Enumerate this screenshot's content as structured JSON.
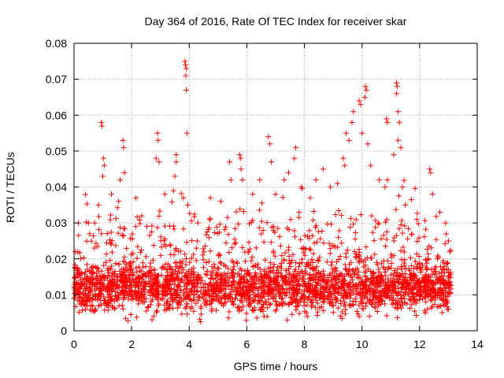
{
  "chart_data": {
    "type": "scatter",
    "title": "Day 364 of 2016, Rate Of TEC Index for receiver skar",
    "xlabel": "GPS time / hours",
    "ylabel": "ROTI / TECUs",
    "xlim": [
      0,
      14
    ],
    "ylim": [
      0,
      0.08
    ],
    "xticks": [
      0,
      2,
      4,
      6,
      8,
      10,
      12,
      14
    ],
    "xtick_labels": [
      "0",
      "2",
      "4",
      "6",
      "8",
      "10",
      "12",
      "14"
    ],
    "yticks": [
      0,
      0.01,
      0.02,
      0.03,
      0.04,
      0.05,
      0.06,
      0.07,
      0.08
    ],
    "ytick_labels": [
      "0",
      "0.01",
      "0.02",
      "0.03",
      "0.04",
      "0.05",
      "0.06",
      "0.07",
      "0.08"
    ],
    "grid": true,
    "marker": "+",
    "series": [
      {
        "name": "ROTI",
        "color": "#ff0000",
        "x_range": [
          0,
          13.1
        ],
        "count": 2800,
        "baseline_mean": 0.012,
        "points": [
          [
            0.15,
            0.03
          ],
          [
            0.5,
            0.03
          ],
          [
            0.95,
            0.058
          ],
          [
            0.97,
            0.057
          ],
          [
            1.02,
            0.048
          ],
          [
            1.05,
            0.046
          ],
          [
            1.0,
            0.043
          ],
          [
            0.85,
            0.035
          ],
          [
            1.3,
            0.038
          ],
          [
            1.55,
            0.036
          ],
          [
            1.7,
            0.053
          ],
          [
            1.72,
            0.051
          ],
          [
            1.75,
            0.044
          ],
          [
            1.6,
            0.042
          ],
          [
            2.15,
            0.037
          ],
          [
            2.35,
            0.032
          ],
          [
            2.9,
            0.055
          ],
          [
            2.92,
            0.053
          ],
          [
            2.85,
            0.048
          ],
          [
            2.95,
            0.047
          ],
          [
            3.15,
            0.038
          ],
          [
            3.5,
            0.043
          ],
          [
            3.45,
            0.039
          ],
          [
            3.55,
            0.049
          ],
          [
            3.55,
            0.047
          ],
          [
            3.85,
            0.075
          ],
          [
            3.87,
            0.074
          ],
          [
            3.9,
            0.073
          ],
          [
            3.88,
            0.071
          ],
          [
            3.9,
            0.067
          ],
          [
            3.92,
            0.055
          ],
          [
            3.8,
            0.037
          ],
          [
            3.95,
            0.035
          ],
          [
            4.3,
            0.03
          ],
          [
            5.1,
            0.036
          ],
          [
            5.4,
            0.047
          ],
          [
            5.45,
            0.042
          ],
          [
            5.75,
            0.049
          ],
          [
            5.78,
            0.048
          ],
          [
            5.8,
            0.045
          ],
          [
            5.85,
            0.042
          ],
          [
            6.2,
            0.038
          ],
          [
            6.45,
            0.042
          ],
          [
            6.75,
            0.054
          ],
          [
            6.8,
            0.052
          ],
          [
            6.85,
            0.047
          ],
          [
            7.0,
            0.038
          ],
          [
            7.3,
            0.042
          ],
          [
            7.45,
            0.044
          ],
          [
            7.65,
            0.048
          ],
          [
            7.7,
            0.051
          ],
          [
            7.9,
            0.04
          ],
          [
            8.2,
            0.037
          ],
          [
            8.4,
            0.042
          ],
          [
            8.65,
            0.045
          ],
          [
            8.9,
            0.04
          ],
          [
            9.15,
            0.041
          ],
          [
            9.35,
            0.048
          ],
          [
            9.4,
            0.046
          ],
          [
            9.45,
            0.055
          ],
          [
            9.55,
            0.053
          ],
          [
            9.65,
            0.058
          ],
          [
            9.7,
            0.061
          ],
          [
            9.9,
            0.064
          ],
          [
            9.95,
            0.063
          ],
          [
            10.1,
            0.065
          ],
          [
            10.12,
            0.068
          ],
          [
            10.15,
            0.067
          ],
          [
            10.0,
            0.055
          ],
          [
            10.2,
            0.052
          ],
          [
            10.3,
            0.046
          ],
          [
            10.6,
            0.042
          ],
          [
            10.8,
            0.04
          ],
          [
            10.85,
            0.059
          ],
          [
            10.88,
            0.058
          ],
          [
            11.2,
            0.069
          ],
          [
            11.22,
            0.068
          ],
          [
            11.2,
            0.066
          ],
          [
            11.25,
            0.061
          ],
          [
            11.3,
            0.058
          ],
          [
            11.25,
            0.053
          ],
          [
            11.35,
            0.051
          ],
          [
            11.1,
            0.049
          ],
          [
            11.4,
            0.04
          ],
          [
            11.5,
            0.035
          ],
          [
            11.9,
            0.031
          ],
          [
            12.35,
            0.045
          ],
          [
            12.38,
            0.044
          ],
          [
            12.45,
            0.038
          ],
          [
            12.7,
            0.033
          ],
          [
            12.9,
            0.03
          ],
          [
            13.0,
            0.025
          ],
          [
            0.05,
            0.022
          ],
          [
            13.05,
            0.022
          ],
          [
            6.6,
            0.004
          ],
          [
            7.4,
            0.003
          ],
          [
            8.1,
            0.004
          ],
          [
            9.9,
            0.004
          ],
          [
            12.2,
            0.005
          ],
          [
            13.0,
            0.006
          ]
        ]
      }
    ]
  }
}
